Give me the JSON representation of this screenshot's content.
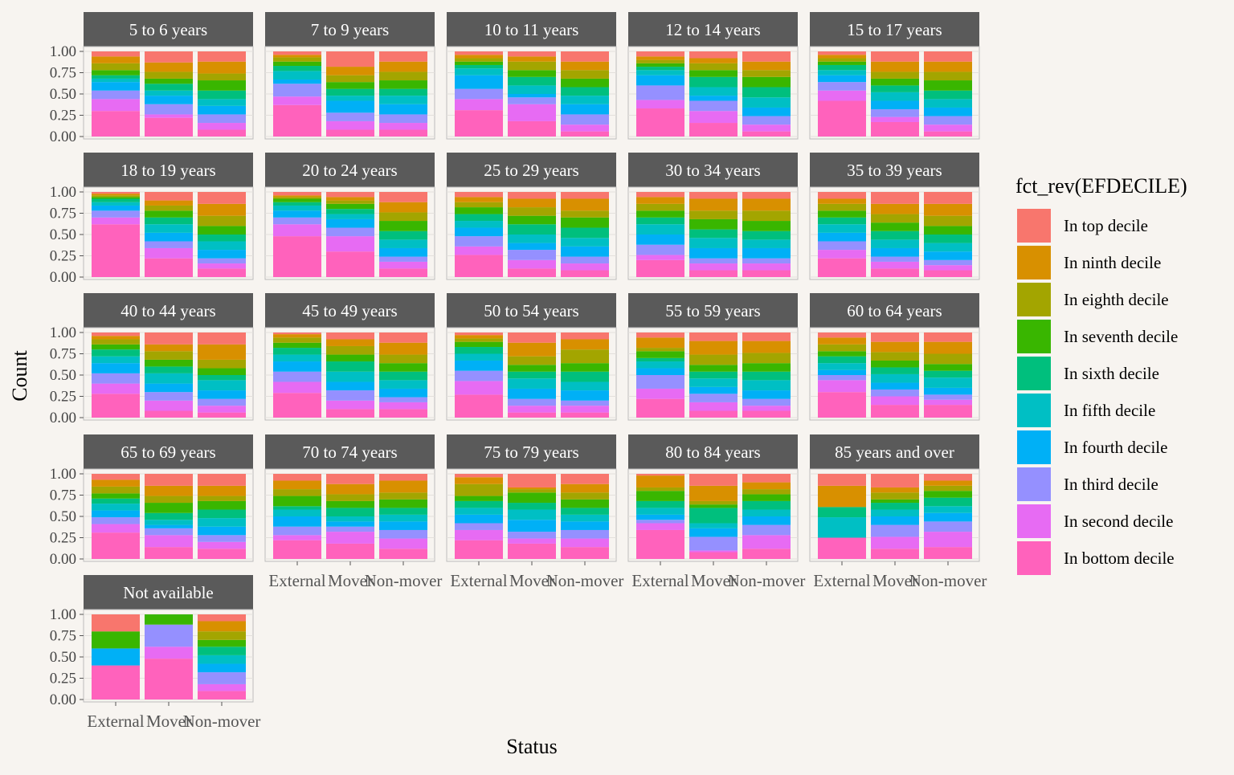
{
  "chart_data": {
    "type": "bar",
    "position": "fill",
    "xlabel": "Status",
    "ylabel": "Count",
    "ylim": [
      0,
      1
    ],
    "y_ticks": [
      "0.00",
      "0.25",
      "0.50",
      "0.75",
      "1.00"
    ],
    "categories": [
      "External",
      "Mover",
      "Non-mover"
    ],
    "legend": {
      "title": "fct_rev(EFDECILE)",
      "placement": "right",
      "entries": [
        {
          "label": "In top decile",
          "color": "#F8766D"
        },
        {
          "label": "In ninth decile",
          "color": "#D89000"
        },
        {
          "label": "In eighth decile",
          "color": "#A3A500"
        },
        {
          "label": "In seventh decile",
          "color": "#39B600"
        },
        {
          "label": "In sixth decile",
          "color": "#00BF7D"
        },
        {
          "label": "In fifth decile",
          "color": "#00BFC4"
        },
        {
          "label": "In fourth decile",
          "color": "#00B0F6"
        },
        {
          "label": "In third decile",
          "color": "#9590FF"
        },
        {
          "label": "In second decile",
          "color": "#E76BF3"
        },
        {
          "label": "In bottom decile",
          "color": "#FF62BC"
        }
      ]
    },
    "stack_order_note": "values listed bottom to top: bottom, second, third, fourth, fifth, sixth, seventh, eighth, ninth, top decile",
    "panels": [
      {
        "title": "5 to 6 years",
        "bars": [
          [
            0.3,
            0.14,
            0.1,
            0.1,
            0.04,
            0.04,
            0.06,
            0.08,
            0.08,
            0.06
          ],
          [
            0.22,
            0.04,
            0.12,
            0.1,
            0.06,
            0.08,
            0.06,
            0.08,
            0.11,
            0.13
          ],
          [
            0.08,
            0.08,
            0.1,
            0.1,
            0.08,
            0.1,
            0.12,
            0.08,
            0.14,
            0.12
          ]
        ]
      },
      {
        "title": "7 to 9 years",
        "bars": [
          [
            0.37,
            0.1,
            0.15,
            0.05,
            0.1,
            0.06,
            0.05,
            0.05,
            0.03,
            0.04
          ],
          [
            0.08,
            0.1,
            0.1,
            0.14,
            0.06,
            0.08,
            0.08,
            0.08,
            0.1,
            0.18
          ],
          [
            0.08,
            0.08,
            0.1,
            0.12,
            0.1,
            0.08,
            0.1,
            0.1,
            0.12,
            0.12
          ]
        ]
      },
      {
        "title": "10 to 11 years",
        "bars": [
          [
            0.31,
            0.13,
            0.12,
            0.16,
            0.08,
            0.04,
            0.04,
            0.04,
            0.04,
            0.04
          ],
          [
            0.18,
            0.2,
            0.08,
            0.04,
            0.1,
            0.1,
            0.08,
            0.1,
            0.06,
            0.06
          ],
          [
            0.06,
            0.08,
            0.12,
            0.12,
            0.1,
            0.1,
            0.1,
            0.1,
            0.1,
            0.12
          ]
        ]
      },
      {
        "title": "12 to 14 years",
        "bars": [
          [
            0.33,
            0.1,
            0.17,
            0.12,
            0.06,
            0.04,
            0.04,
            0.04,
            0.04,
            0.06
          ],
          [
            0.16,
            0.14,
            0.12,
            0.06,
            0.1,
            0.12,
            0.08,
            0.08,
            0.06,
            0.08
          ],
          [
            0.06,
            0.08,
            0.1,
            0.1,
            0.12,
            0.12,
            0.12,
            0.08,
            0.1,
            0.12
          ]
        ]
      },
      {
        "title": "15 to 17 years",
        "bars": [
          [
            0.42,
            0.12,
            0.1,
            0.08,
            0.06,
            0.06,
            0.04,
            0.04,
            0.04,
            0.04
          ],
          [
            0.17,
            0.06,
            0.09,
            0.1,
            0.1,
            0.08,
            0.08,
            0.08,
            0.12,
            0.12
          ],
          [
            0.06,
            0.08,
            0.1,
            0.1,
            0.1,
            0.1,
            0.12,
            0.1,
            0.12,
            0.12
          ]
        ]
      },
      {
        "title": "18 to 19 years",
        "bars": [
          [
            0.62,
            0.08,
            0.08,
            0.06,
            0.04,
            0.04,
            0.02,
            0.02,
            0.02,
            0.02
          ],
          [
            0.22,
            0.12,
            0.08,
            0.1,
            0.1,
            0.08,
            0.08,
            0.06,
            0.06,
            0.1
          ],
          [
            0.1,
            0.06,
            0.06,
            0.1,
            0.1,
            0.08,
            0.1,
            0.12,
            0.14,
            0.14
          ]
        ]
      },
      {
        "title": "20 to 24 years",
        "bars": [
          [
            0.48,
            0.14,
            0.08,
            0.08,
            0.06,
            0.04,
            0.04,
            0.02,
            0.02,
            0.04
          ],
          [
            0.3,
            0.18,
            0.1,
            0.1,
            0.06,
            0.06,
            0.06,
            0.04,
            0.04,
            0.06
          ],
          [
            0.1,
            0.08,
            0.06,
            0.1,
            0.1,
            0.1,
            0.12,
            0.1,
            0.12,
            0.12
          ]
        ]
      },
      {
        "title": "25 to 29 years",
        "bars": [
          [
            0.26,
            0.1,
            0.12,
            0.1,
            0.08,
            0.08,
            0.08,
            0.06,
            0.06,
            0.06
          ],
          [
            0.1,
            0.1,
            0.12,
            0.08,
            0.1,
            0.12,
            0.1,
            0.1,
            0.1,
            0.08
          ],
          [
            0.08,
            0.08,
            0.08,
            0.12,
            0.1,
            0.12,
            0.12,
            0.08,
            0.14,
            0.08
          ]
        ]
      },
      {
        "title": "30 to 34 years",
        "bars": [
          [
            0.2,
            0.06,
            0.12,
            0.12,
            0.12,
            0.08,
            0.08,
            0.08,
            0.08,
            0.06
          ],
          [
            0.08,
            0.08,
            0.06,
            0.12,
            0.12,
            0.1,
            0.12,
            0.1,
            0.14,
            0.08
          ],
          [
            0.08,
            0.08,
            0.06,
            0.12,
            0.1,
            0.1,
            0.12,
            0.12,
            0.14,
            0.08
          ]
        ]
      },
      {
        "title": "35 to 39 years",
        "bars": [
          [
            0.22,
            0.1,
            0.1,
            0.1,
            0.1,
            0.08,
            0.08,
            0.08,
            0.06,
            0.08
          ],
          [
            0.1,
            0.08,
            0.06,
            0.1,
            0.1,
            0.1,
            0.1,
            0.1,
            0.12,
            0.14
          ],
          [
            0.08,
            0.06,
            0.06,
            0.1,
            0.1,
            0.1,
            0.1,
            0.12,
            0.14,
            0.14
          ]
        ]
      },
      {
        "title": "40 to 44 years",
        "bars": [
          [
            0.28,
            0.12,
            0.12,
            0.12,
            0.08,
            0.08,
            0.06,
            0.06,
            0.04,
            0.04
          ],
          [
            0.08,
            0.12,
            0.1,
            0.1,
            0.12,
            0.08,
            0.08,
            0.1,
            0.08,
            0.14
          ],
          [
            0.06,
            0.08,
            0.08,
            0.1,
            0.12,
            0.06,
            0.08,
            0.1,
            0.18,
            0.14
          ]
        ]
      },
      {
        "title": "45 to 49 years",
        "bars": [
          [
            0.29,
            0.13,
            0.12,
            0.12,
            0.08,
            0.08,
            0.06,
            0.06,
            0.04,
            0.02
          ],
          [
            0.1,
            0.1,
            0.12,
            0.1,
            0.12,
            0.12,
            0.08,
            0.1,
            0.08,
            0.08
          ],
          [
            0.1,
            0.08,
            0.06,
            0.1,
            0.1,
            0.1,
            0.1,
            0.1,
            0.14,
            0.12
          ]
        ]
      },
      {
        "title": "50 to 54 years",
        "bars": [
          [
            0.27,
            0.16,
            0.12,
            0.12,
            0.08,
            0.08,
            0.06,
            0.04,
            0.04,
            0.03
          ],
          [
            0.06,
            0.08,
            0.08,
            0.12,
            0.12,
            0.08,
            0.08,
            0.1,
            0.16,
            0.12
          ],
          [
            0.06,
            0.08,
            0.06,
            0.12,
            0.1,
            0.12,
            0.1,
            0.16,
            0.12,
            0.08
          ]
        ]
      },
      {
        "title": "55 to 59 years",
        "bars": [
          [
            0.22,
            0.12,
            0.16,
            0.08,
            0.08,
            0.04,
            0.08,
            0.04,
            0.12,
            0.06
          ],
          [
            0.08,
            0.1,
            0.1,
            0.08,
            0.1,
            0.08,
            0.08,
            0.12,
            0.16,
            0.1
          ],
          [
            0.08,
            0.06,
            0.08,
            0.1,
            0.12,
            0.1,
            0.1,
            0.12,
            0.14,
            0.1
          ]
        ]
      },
      {
        "title": "60 to 64 years",
        "bars": [
          [
            0.3,
            0.14,
            0.06,
            0.06,
            0.08,
            0.08,
            0.06,
            0.08,
            0.08,
            0.06
          ],
          [
            0.15,
            0.1,
            0.08,
            0.08,
            0.1,
            0.08,
            0.08,
            0.1,
            0.12,
            0.11
          ],
          [
            0.15,
            0.06,
            0.06,
            0.08,
            0.12,
            0.08,
            0.08,
            0.12,
            0.14,
            0.11
          ]
        ]
      },
      {
        "title": "65 to 69 years",
        "bars": [
          [
            0.31,
            0.1,
            0.08,
            0.08,
            0.08,
            0.06,
            0.06,
            0.08,
            0.08,
            0.07
          ],
          [
            0.14,
            0.14,
            0.08,
            0.04,
            0.06,
            0.08,
            0.12,
            0.08,
            0.12,
            0.14
          ],
          [
            0.12,
            0.08,
            0.08,
            0.1,
            0.1,
            0.1,
            0.1,
            0.06,
            0.12,
            0.14
          ]
        ]
      },
      {
        "title": "70 to 74 years",
        "bars": [
          [
            0.22,
            0.06,
            0.1,
            0.12,
            0.08,
            0.04,
            0.12,
            0.08,
            0.1,
            0.08
          ],
          [
            0.18,
            0.14,
            0.06,
            0.06,
            0.06,
            0.1,
            0.08,
            0.08,
            0.12,
            0.12
          ],
          [
            0.12,
            0.12,
            0.1,
            0.1,
            0.08,
            0.08,
            0.1,
            0.08,
            0.14,
            0.08
          ]
        ]
      },
      {
        "title": "75 to 79 years",
        "bars": [
          [
            0.22,
            0.12,
            0.08,
            0.1,
            0.08,
            0.08,
            0.06,
            0.14,
            0.08,
            0.04
          ],
          [
            0.18,
            0.06,
            0.08,
            0.14,
            0.12,
            0.08,
            0.12,
            0.04,
            0.02,
            0.16
          ],
          [
            0.14,
            0.1,
            0.1,
            0.1,
            0.08,
            0.08,
            0.1,
            0.08,
            0.1,
            0.12
          ]
        ]
      },
      {
        "title": "80 to 84 years",
        "bars": [
          [
            0.34,
            0.08,
            0.04,
            0.06,
            0.08,
            0.08,
            0.12,
            0.04,
            0.14,
            0.02
          ],
          [
            0.08,
            0.02,
            0.16,
            0.1,
            0.06,
            0.18,
            0.04,
            0.04,
            0.18,
            0.14
          ],
          [
            0.12,
            0.16,
            0.12,
            0.1,
            0.08,
            0.1,
            0.08,
            0.06,
            0.08,
            0.1
          ]
        ]
      },
      {
        "title": "85 years and over",
        "bars": [
          [
            0.25,
            0.0,
            0.0,
            0.0,
            0.24,
            0.12,
            0.0,
            0.0,
            0.25,
            0.14
          ],
          [
            0.12,
            0.14,
            0.14,
            0.1,
            0.08,
            0.08,
            0.04,
            0.08,
            0.06,
            0.16
          ],
          [
            0.14,
            0.18,
            0.12,
            0.1,
            0.08,
            0.1,
            0.08,
            0.06,
            0.06,
            0.08
          ]
        ]
      },
      {
        "title": "Not available",
        "bars": [
          [
            0.4,
            0.0,
            0.0,
            0.2,
            0.0,
            0.0,
            0.2,
            0.0,
            0.0,
            0.2
          ],
          [
            0.48,
            0.14,
            0.26,
            0.0,
            0.0,
            0.0,
            0.12,
            0.0,
            0.0,
            0.0
          ],
          [
            0.1,
            0.08,
            0.14,
            0.1,
            0.1,
            0.1,
            0.08,
            0.1,
            0.12,
            0.08
          ]
        ]
      }
    ]
  }
}
